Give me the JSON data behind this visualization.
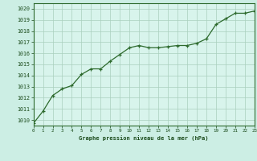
{
  "x": [
    0,
    1,
    2,
    3,
    4,
    5,
    6,
    7,
    8,
    9,
    10,
    11,
    12,
    13,
    14,
    15,
    16,
    17,
    18,
    19,
    20,
    21,
    22,
    23
  ],
  "y": [
    1009.7,
    1010.8,
    1012.2,
    1012.8,
    1013.1,
    1014.1,
    1014.6,
    1014.6,
    1015.3,
    1015.9,
    1016.5,
    1016.7,
    1016.5,
    1016.5,
    1016.6,
    1016.7,
    1016.7,
    1016.9,
    1017.3,
    1018.6,
    1019.1,
    1019.6,
    1019.6,
    1019.8
  ],
  "line_color": "#2d6a2d",
  "marker": "+",
  "marker_color": "#2d6a2d",
  "bg_color": "#cceee4",
  "grid_color": "#aacfbe",
  "xlabel": "Graphe pression niveau de la mer (hPa)",
  "xlabel_color": "#1a4a1a",
  "tick_color": "#1a4a1a",
  "ylim": [
    1009.5,
    1020.5
  ],
  "yticks": [
    1010,
    1011,
    1012,
    1013,
    1014,
    1015,
    1016,
    1017,
    1018,
    1019,
    1020
  ],
  "xticks": [
    0,
    1,
    2,
    3,
    4,
    5,
    6,
    7,
    8,
    9,
    10,
    11,
    12,
    13,
    14,
    15,
    16,
    17,
    18,
    19,
    20,
    21,
    22,
    23
  ],
  "xlim": [
    0,
    23
  ],
  "axis_bg": "#d8f4ec",
  "border_color": "#2d6a2d"
}
